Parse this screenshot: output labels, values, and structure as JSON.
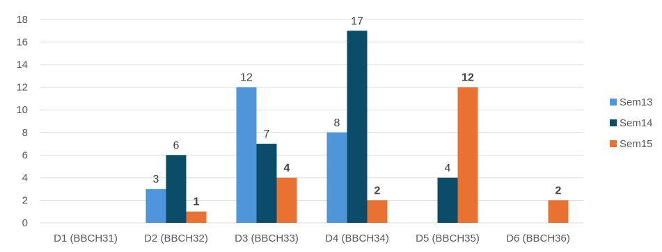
{
  "chart_data": {
    "type": "bar",
    "title": "",
    "xlabel": "",
    "ylabel": "",
    "categories": [
      "D1 (BBCH31)",
      "D2 (BBCH32)",
      "D3 (BBCH33)",
      "D4 (BBCH34)",
      "D5 (BBCH35)",
      "D6 (BBCH36)"
    ],
    "ylim": [
      0,
      18
    ],
    "yticks": [
      0,
      2,
      4,
      6,
      8,
      10,
      12,
      14,
      16,
      18
    ],
    "grid": true,
    "legend": "right",
    "series": [
      {
        "name": "Sem13",
        "color": "#4e95d9",
        "label_bold": false,
        "values": [
          null,
          3,
          12,
          8,
          null,
          null
        ]
      },
      {
        "name": "Sem14",
        "color": "#0b4d68",
        "label_bold": false,
        "values": [
          null,
          6,
          7,
          17,
          4,
          null
        ]
      },
      {
        "name": "Sem15",
        "color": "#e97132",
        "label_bold": true,
        "values": [
          null,
          1,
          4,
          2,
          12,
          2
        ]
      }
    ],
    "colors": {
      "grid": "#d9d9d9",
      "axis_text": "#595959",
      "label_text": "#404040"
    }
  }
}
